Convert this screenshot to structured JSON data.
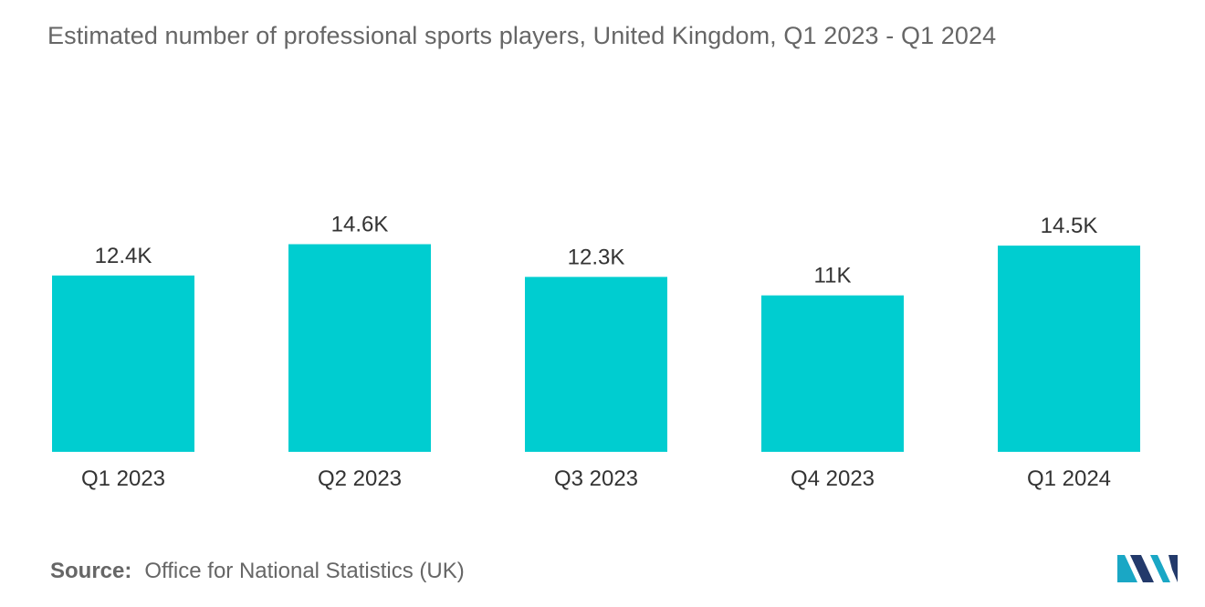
{
  "title": "Estimated number of professional sports players, United Kingdom, Q1 2023 - Q1 2024",
  "source": {
    "label": "Source:",
    "text": "Office for National Statistics (UK)"
  },
  "logo": {
    "icon": "mordor-intelligence-logo-icon",
    "colors": [
      "#1aa7c5",
      "#233a6b"
    ]
  },
  "chart_data": {
    "type": "bar",
    "categories": [
      "Q1 2023",
      "Q2 2023",
      "Q3 2023",
      "Q4 2023",
      "Q1 2024"
    ],
    "values": [
      12400,
      14600,
      12300,
      11000,
      14500
    ],
    "value_labels": [
      "12.4K",
      "14.6K",
      "12.3K",
      "11K",
      "14.5K"
    ],
    "title": "Estimated number of professional sports players, United Kingdom, Q1 2023 - Q1 2024",
    "xlabel": "",
    "ylabel": "",
    "ylim": [
      0,
      25000
    ],
    "grid": false,
    "legend": "none",
    "bar_color": "#00cdd0"
  }
}
